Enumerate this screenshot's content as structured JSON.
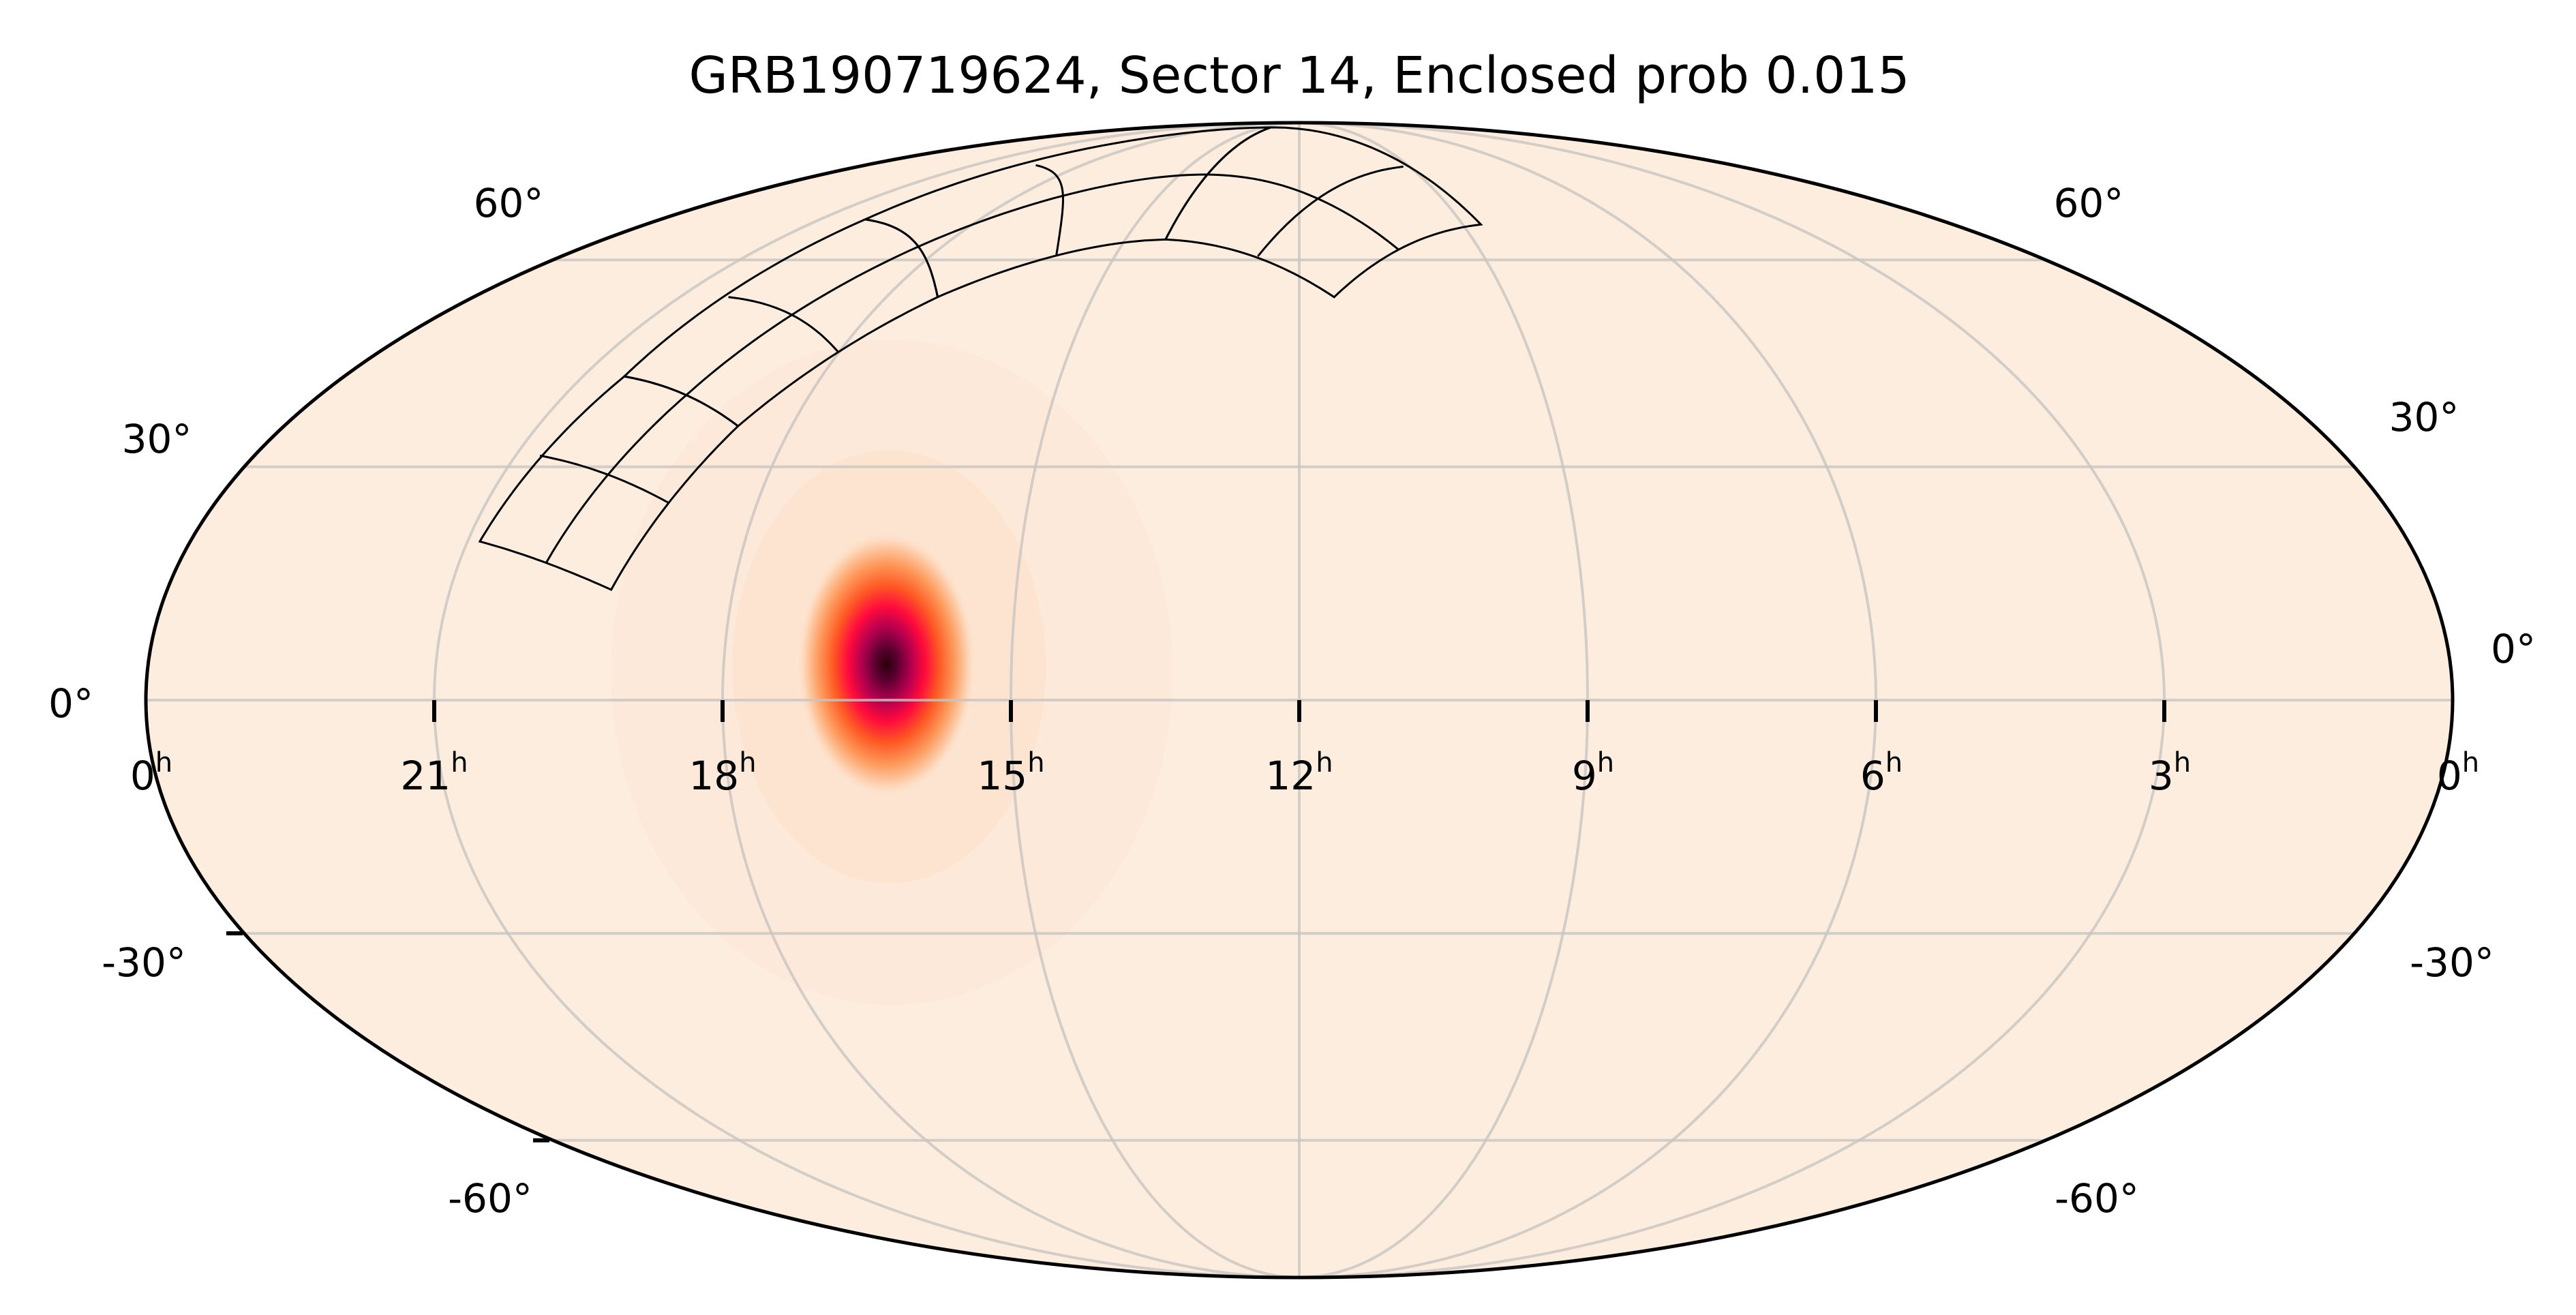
{
  "chart_data": {
    "type": "heatmap",
    "projection": "mollweide",
    "title": "GRB190719624, Sector 14, Enclosed prob 0.015",
    "xlabel": "",
    "ylabel": "",
    "grid": true,
    "ra_ticks": [
      {
        "value": "0",
        "unit": "h",
        "ra_deg": 360
      },
      {
        "value": "21",
        "unit": "h",
        "ra_deg": 315
      },
      {
        "value": "18",
        "unit": "h",
        "ra_deg": 270
      },
      {
        "value": "15",
        "unit": "h",
        "ra_deg": 225
      },
      {
        "value": "12",
        "unit": "h",
        "ra_deg": 180
      },
      {
        "value": "9",
        "unit": "h",
        "ra_deg": 135
      },
      {
        "value": "6",
        "unit": "h",
        "ra_deg": 90
      },
      {
        "value": "3",
        "unit": "h",
        "ra_deg": 45
      },
      {
        "value": "0",
        "unit": "h",
        "ra_deg": 0
      }
    ],
    "dec_gridlines": [
      60,
      30,
      0,
      -30,
      -60
    ],
    "dec_labels_left": [
      "60°",
      "30°",
      "0°",
      "-30°",
      "-60°"
    ],
    "dec_labels_right": [
      "60°",
      "30°",
      "0°",
      "-30°",
      "-60°"
    ],
    "probability_peak": {
      "ra": 244.6,
      "dec": 5.4
    },
    "colormap": [
      "#fdeddf",
      "#fdd0ae",
      "#fd9a5c",
      "#fe5a24",
      "#ff0a3c",
      "#c4004f",
      "#5a0030",
      "#2a0008"
    ],
    "footprints": [
      {
        "camera": 1,
        "corners": [
          [
            313.0,
            20.2
          ],
          [
            289.4,
            14.0
          ],
          [
            279.5,
            35.5
          ],
          [
            307.2,
            42.4
          ]
        ],
        "mid": [
          [
            310.8,
            31.5
          ],
          [
            284.6,
            25.2
          ]
        ]
      },
      {
        "camera": 2,
        "corners": [
          [
            307.2,
            42.4
          ],
          [
            279.5,
            35.5
          ],
          [
            258.8,
            54.1
          ],
          [
            302.3,
            66.9
          ]
        ],
        "mid": [
          [
            304.4,
            54.1
          ],
          [
            270.4,
            46.0
          ]
        ]
      },
      {
        "camera": 3,
        "corners": [
          [
            302.3,
            66.9
          ],
          [
            258.8,
            54.1
          ],
          [
            214.6,
            63.4
          ],
          [
            214.7,
            87.6
          ]
        ],
        "mid": [
          [
            289.2,
            77.5
          ],
          [
            239.3,
            60.6
          ]
        ]
      },
      {
        "camera": 4,
        "corners": [
          [
            214.7,
            87.6
          ],
          [
            214.6,
            63.4
          ],
          [
            172.4,
            54.1
          ],
          [
            130.0,
            66.0
          ]
        ],
        "mid": [
          [
            190.1,
            60.6
          ],
          [
            137.5,
            77.2
          ]
        ]
      }
    ]
  }
}
